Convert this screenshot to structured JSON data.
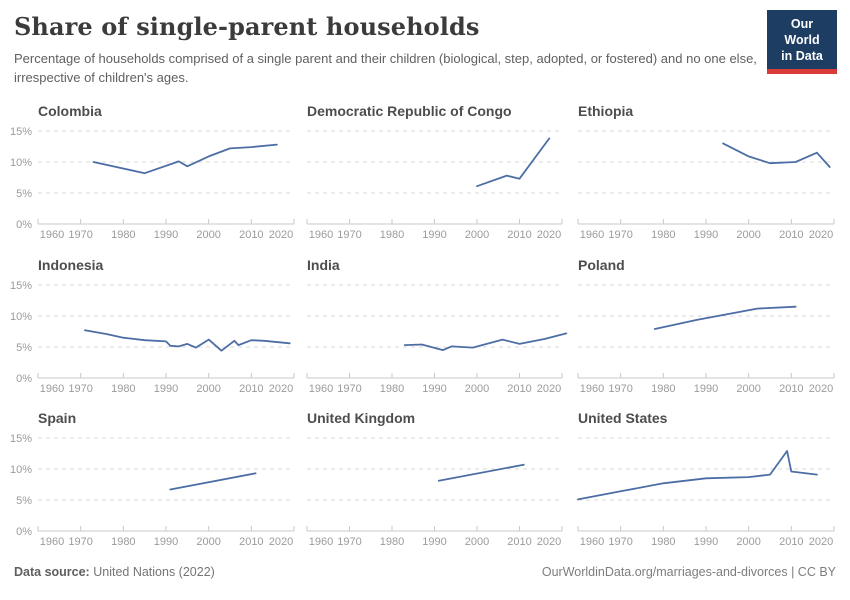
{
  "header": {
    "title": "Share of single-parent households",
    "subtitle": "Percentage of households comprised of a single parent and their children (biological, step, adopted, or fostered) and no one else, irrespective of children's ages.",
    "logo": {
      "line1": "Our World",
      "line2": "in Data"
    }
  },
  "footer": {
    "source_label": "Data source:",
    "source_value": "United Nations (2022)",
    "link": "OurWorldinData.org/marriages-and-divorces",
    "separator": "|",
    "license": "CC BY"
  },
  "colors": {
    "line": "#4c6ea5",
    "logo_navy": "#1d3d63",
    "logo_red": "#d93a3a",
    "grid": "#d9d9d9",
    "axis": "#c9c9c9",
    "tick_text": "#9b9b9b",
    "chart_title": "#4d4d4d"
  },
  "axes": {
    "x_ticks": [
      1960,
      1970,
      1980,
      1990,
      2000,
      2010,
      2020
    ],
    "y_ticks": [
      0,
      5,
      10,
      15
    ],
    "y_tick_labels": [
      "0%",
      "5%",
      "10%",
      "15%"
    ],
    "x_range": [
      1960,
      2020
    ],
    "y_range": [
      0,
      15
    ],
    "grid": "dashed horizontal only",
    "y_labels_shown_on_first_column_only": true
  },
  "chart_data": [
    {
      "type": "line",
      "title": "Colombia",
      "unit": "%",
      "points": [
        [
          1973,
          10.0
        ],
        [
          1985,
          8.2
        ],
        [
          1993,
          10.1
        ],
        [
          1995,
          9.3
        ],
        [
          2000,
          10.9
        ],
        [
          2005,
          12.2
        ],
        [
          2010,
          12.4
        ],
        [
          2016,
          12.8
        ]
      ]
    },
    {
      "type": "line",
      "title": "Democratic Republic of Congo",
      "unit": "%",
      "points": [
        [
          2000,
          6.1
        ],
        [
          2007,
          7.8
        ],
        [
          2010,
          7.3
        ],
        [
          2017,
          13.8
        ]
      ]
    },
    {
      "type": "line",
      "title": "Ethiopia",
      "unit": "%",
      "points": [
        [
          1994,
          13.0
        ],
        [
          2000,
          10.9
        ],
        [
          2005,
          9.8
        ],
        [
          2011,
          10.0
        ],
        [
          2016,
          11.5
        ],
        [
          2019,
          9.2
        ]
      ]
    },
    {
      "type": "line",
      "title": "Indonesia",
      "unit": "%",
      "points": [
        [
          1971,
          7.7
        ],
        [
          1976,
          7.1
        ],
        [
          1980,
          6.5
        ],
        [
          1985,
          6.1
        ],
        [
          1990,
          5.9
        ],
        [
          1991,
          5.2
        ],
        [
          1993,
          5.1
        ],
        [
          1995,
          5.5
        ],
        [
          1997,
          4.9
        ],
        [
          2000,
          6.2
        ],
        [
          2003,
          4.4
        ],
        [
          2006,
          6.0
        ],
        [
          2007,
          5.3
        ],
        [
          2010,
          6.1
        ],
        [
          2013,
          6.0
        ],
        [
          2019,
          5.6
        ]
      ]
    },
    {
      "type": "line",
      "title": "India",
      "unit": "%",
      "points": [
        [
          1983,
          5.3
        ],
        [
          1987,
          5.4
        ],
        [
          1992,
          4.5
        ],
        [
          1994,
          5.1
        ],
        [
          1999,
          4.9
        ],
        [
          2006,
          6.2
        ],
        [
          2010,
          5.5
        ],
        [
          2016,
          6.3
        ],
        [
          2021,
          7.2
        ]
      ]
    },
    {
      "type": "line",
      "title": "Poland",
      "unit": "%",
      "points": [
        [
          1978,
          7.9
        ],
        [
          1988,
          9.4
        ],
        [
          2002,
          11.2
        ],
        [
          2011,
          11.5
        ]
      ]
    },
    {
      "type": "line",
      "title": "Spain",
      "unit": "%",
      "points": [
        [
          1991,
          6.7
        ],
        [
          2011,
          9.3
        ]
      ]
    },
    {
      "type": "line",
      "title": "United Kingdom",
      "unit": "%",
      "points": [
        [
          1991,
          8.1
        ],
        [
          2011,
          10.7
        ]
      ]
    },
    {
      "type": "line",
      "title": "United States",
      "unit": "%",
      "points": [
        [
          1960,
          5.1
        ],
        [
          1970,
          6.4
        ],
        [
          1980,
          7.7
        ],
        [
          1990,
          8.5
        ],
        [
          2000,
          8.7
        ],
        [
          2005,
          9.1
        ],
        [
          2009,
          12.9
        ],
        [
          2010,
          9.6
        ],
        [
          2016,
          9.1
        ]
      ]
    }
  ]
}
